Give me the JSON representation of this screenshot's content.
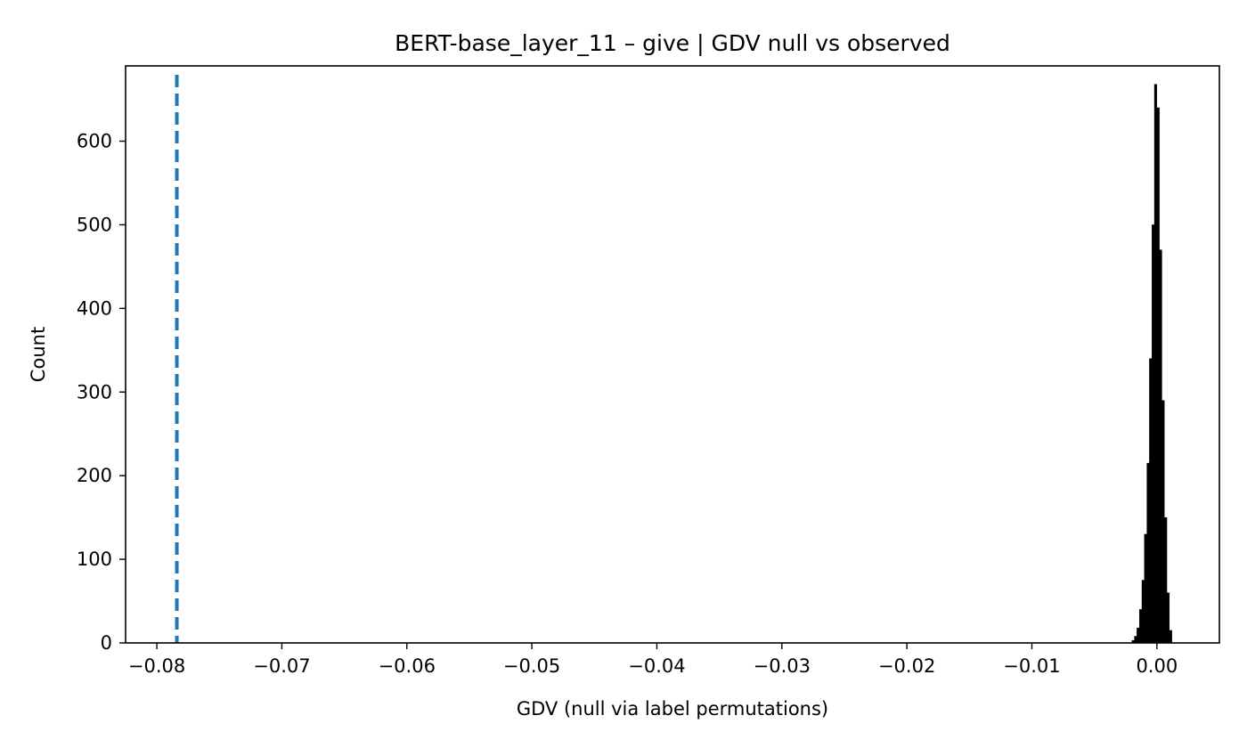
{
  "chart_data": {
    "type": "bar",
    "title": "BERT-base_layer_11 – give | GDV null vs observed",
    "xlabel": "GDV (null via label permutations)",
    "ylabel": "Count",
    "xlim": [
      -0.0825,
      0.005
    ],
    "ylim": [
      0,
      690
    ],
    "grid": false,
    "x_ticks": [
      -0.08,
      -0.07,
      -0.06,
      -0.05,
      -0.04,
      -0.03,
      -0.02,
      -0.01,
      0.0
    ],
    "x_tick_labels": [
      "−0.08",
      "−0.07",
      "−0.06",
      "−0.05",
      "−0.04",
      "−0.03",
      "−0.02",
      "−0.01",
      "0.00"
    ],
    "y_ticks": [
      0,
      100,
      200,
      300,
      400,
      500,
      600
    ],
    "y_tick_labels": [
      "0",
      "100",
      "200",
      "300",
      "400",
      "500",
      "600"
    ],
    "histogram": {
      "bin_edges": [
        -0.002,
        -0.0018,
        -0.0016,
        -0.0014,
        -0.0012,
        -0.001,
        -0.0008,
        -0.0006,
        -0.0004,
        -0.0002,
        0.0,
        0.0002,
        0.0004,
        0.0006,
        0.0008,
        0.001,
        0.0012
      ],
      "counts": [
        3,
        8,
        18,
        40,
        75,
        130,
        215,
        340,
        500,
        668,
        640,
        470,
        290,
        150,
        60,
        15
      ],
      "color": "#000000"
    },
    "observed_line": {
      "x": -0.0784,
      "style": "dashed",
      "color": "#1f77b4"
    }
  }
}
